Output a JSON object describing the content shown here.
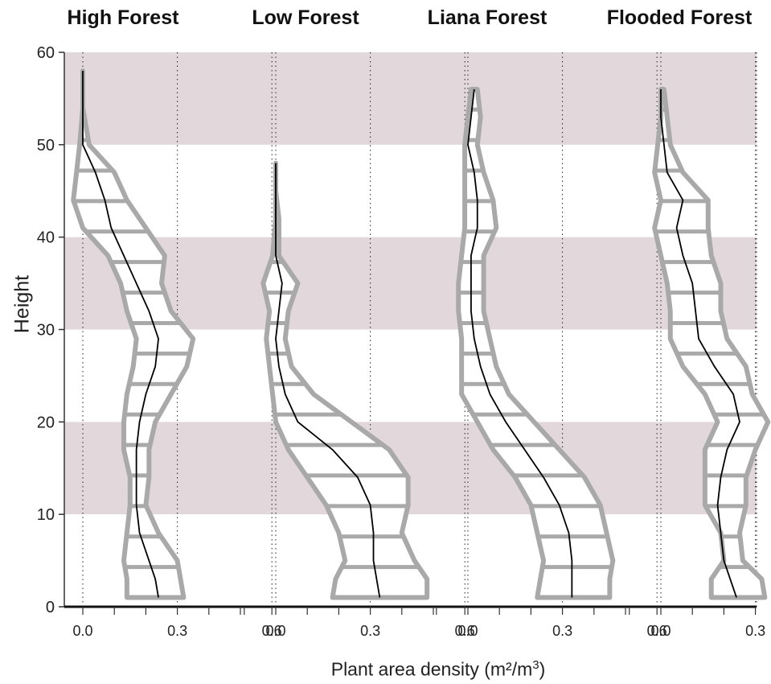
{
  "chart_data": {
    "type": "line",
    "ylabel": "Height",
    "xlabel_main": "Plant area density (m²/m",
    "xlabel_sup": "3",
    "xlabel_end": ")",
    "ylim": [
      0,
      60
    ],
    "yticks": [
      0,
      10,
      20,
      30,
      40,
      50,
      60
    ],
    "xticks": [
      "0.0",
      "0.3",
      "0.6"
    ],
    "xlim": [
      -0.1,
      0.6
    ],
    "grid": "dotted vertical lines at 0.0, 0.3, 0.6",
    "bands": [
      [
        10,
        20
      ],
      [
        30,
        40
      ],
      [
        50,
        60
      ]
    ],
    "band_color": "#e2d8dc",
    "line_color": "#000000",
    "range_color": "#a9a9a9",
    "panels": [
      {
        "title": "High Forest",
        "heights": [
          1,
          3,
          5,
          8,
          11,
          14,
          17,
          20,
          23,
          26,
          29,
          32,
          35,
          38,
          41,
          44,
          47,
          50,
          54,
          58
        ],
        "mean": [
          0.24,
          0.23,
          0.21,
          0.18,
          0.17,
          0.17,
          0.17,
          0.18,
          0.2,
          0.23,
          0.24,
          0.21,
          0.17,
          0.13,
          0.09,
          0.07,
          0.04,
          0.0,
          0.0,
          0.0
        ],
        "lower": [
          0.14,
          0.14,
          0.13,
          0.14,
          0.15,
          0.15,
          0.13,
          0.13,
          0.14,
          0.16,
          0.17,
          0.14,
          0.12,
          0.08,
          0.0,
          -0.03,
          -0.02,
          -0.01,
          0.0,
          0.0
        ],
        "upper": [
          0.32,
          0.31,
          0.3,
          0.24,
          0.2,
          0.21,
          0.21,
          0.23,
          0.28,
          0.33,
          0.35,
          0.28,
          0.25,
          0.26,
          0.2,
          0.14,
          0.1,
          0.02,
          0.0,
          0.0
        ]
      },
      {
        "title": "Low Forest",
        "heights": [
          1,
          3,
          5,
          8,
          11,
          14,
          17,
          20,
          23,
          26,
          29,
          32,
          35,
          38,
          42,
          45,
          48
        ],
        "mean": [
          0.33,
          0.32,
          0.31,
          0.31,
          0.3,
          0.26,
          0.18,
          0.07,
          0.03,
          0.01,
          0.0,
          0.01,
          0.02,
          0.0,
          0.0,
          0.0,
          0.0
        ],
        "lower": [
          0.18,
          0.19,
          0.22,
          0.2,
          0.16,
          0.1,
          0.04,
          0.0,
          -0.01,
          -0.02,
          -0.03,
          -0.02,
          -0.04,
          -0.01,
          0.0,
          0.0,
          0.0
        ],
        "upper": [
          0.48,
          0.48,
          0.44,
          0.4,
          0.42,
          0.42,
          0.36,
          0.24,
          0.12,
          0.05,
          0.03,
          0.04,
          0.07,
          0.01,
          0.01,
          0.0,
          0.0
        ]
      },
      {
        "title": "Liana Forest",
        "heights": [
          1,
          3,
          5,
          8,
          11,
          14,
          17,
          20,
          23,
          26,
          29,
          32,
          35,
          38,
          41,
          44,
          47,
          50,
          53,
          56
        ],
        "mean": [
          0.33,
          0.33,
          0.33,
          0.32,
          0.29,
          0.24,
          0.18,
          0.12,
          0.07,
          0.04,
          0.02,
          0.01,
          0.01,
          0.01,
          0.03,
          0.03,
          0.02,
          0.0,
          0.01,
          0.02
        ],
        "lower": [
          0.22,
          0.23,
          0.24,
          0.22,
          0.2,
          0.15,
          0.08,
          0.03,
          -0.02,
          -0.02,
          -0.02,
          -0.03,
          -0.03,
          -0.02,
          -0.01,
          -0.01,
          -0.01,
          -0.01,
          0.0,
          0.01
        ],
        "upper": [
          0.45,
          0.45,
          0.46,
          0.44,
          0.42,
          0.37,
          0.29,
          0.21,
          0.13,
          0.09,
          0.07,
          0.05,
          0.05,
          0.05,
          0.09,
          0.08,
          0.05,
          0.03,
          0.04,
          0.03
        ]
      },
      {
        "title": "Flooded Forest",
        "heights": [
          1,
          3,
          5,
          8,
          11,
          14,
          17,
          20,
          23,
          26,
          29,
          32,
          35,
          38,
          41,
          44,
          47,
          50,
          53,
          56
        ],
        "mean": [
          0.24,
          0.22,
          0.2,
          0.19,
          0.18,
          0.19,
          0.21,
          0.25,
          0.23,
          0.17,
          0.12,
          0.11,
          0.1,
          0.07,
          0.05,
          0.07,
          0.02,
          0.01,
          0.0,
          0.0
        ],
        "lower": [
          0.16,
          0.16,
          0.2,
          0.19,
          0.14,
          0.14,
          0.14,
          0.18,
          0.14,
          0.07,
          0.03,
          0.03,
          0.02,
          0.0,
          -0.02,
          0.0,
          -0.02,
          -0.01,
          0.0,
          0.0
        ],
        "upper": [
          0.33,
          0.32,
          0.26,
          0.25,
          0.27,
          0.27,
          0.3,
          0.34,
          0.29,
          0.27,
          0.21,
          0.19,
          0.19,
          0.16,
          0.15,
          0.15,
          0.07,
          0.03,
          0.02,
          0.01
        ]
      }
    ]
  }
}
